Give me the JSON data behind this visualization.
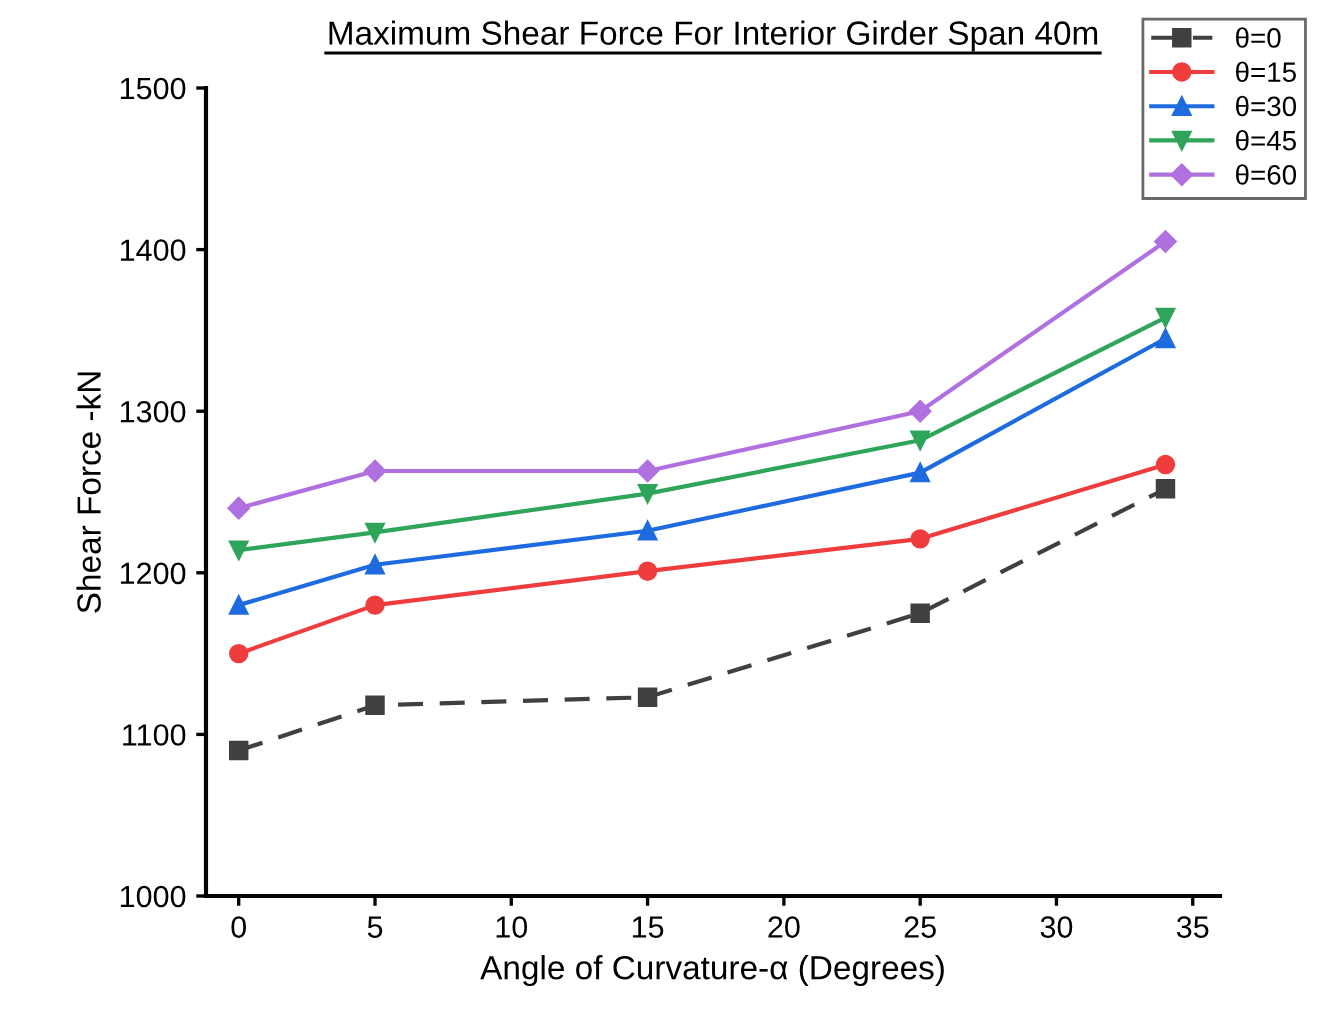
{
  "chart_data": {
    "type": "line",
    "title": "Maximum Shear Force For Interior Girder Span 40m",
    "xlabel": "Angle of Curvature-α (Degrees)",
    "ylabel": "Shear Force -kN",
    "x": [
      0,
      5,
      15,
      25,
      34
    ],
    "series": [
      {
        "name": "θ=0",
        "color": "#404040",
        "values": [
          1090,
          1118,
          1123,
          1175,
          1252
        ],
        "marker": "square",
        "line_style": "dashed"
      },
      {
        "name": "θ=15",
        "color": "#ef3c3c",
        "values": [
          1150,
          1180,
          1201,
          1221,
          1267
        ],
        "marker": "circle",
        "line_style": "solid"
      },
      {
        "name": "θ=30",
        "color": "#1e6be0",
        "values": [
          1180,
          1205,
          1226,
          1262,
          1345
        ],
        "marker": "triangle",
        "line_style": "solid"
      },
      {
        "name": "θ=45",
        "color": "#2ea55a",
        "values": [
          1214,
          1225,
          1249,
          1282,
          1358
        ],
        "marker": "triangle_down",
        "line_style": "solid"
      },
      {
        "name": "θ=60",
        "color": "#b070e0",
        "values": [
          1240,
          1263,
          1263,
          1300,
          1405
        ],
        "marker": "diamond",
        "line_style": "solid"
      }
    ],
    "xlim": [
      -1.2,
      36
    ],
    "xticks": [
      0,
      5,
      10,
      15,
      20,
      25,
      30,
      35
    ],
    "ylim": [
      1000,
      1500
    ],
    "yticks": [
      1000,
      1100,
      1200,
      1300,
      1400,
      1500
    ],
    "grid": false,
    "legend": "top right"
  }
}
